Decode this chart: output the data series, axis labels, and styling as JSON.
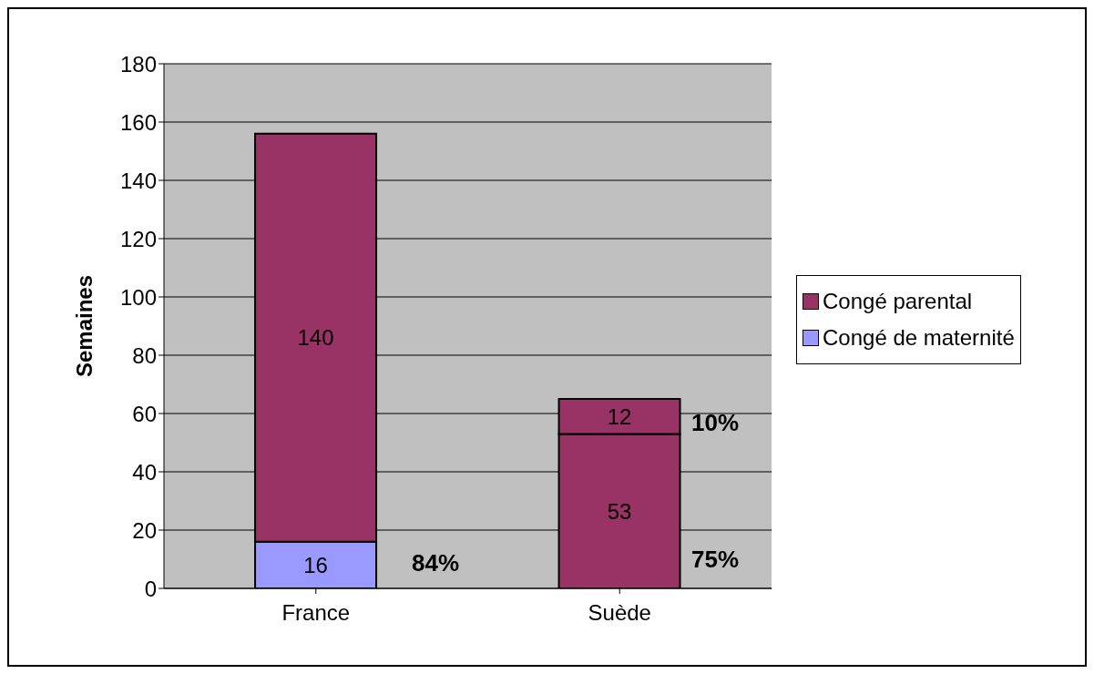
{
  "chart_data": {
    "type": "bar",
    "stacked": true,
    "ylabel": "Semaines",
    "categories": [
      "France",
      "Suède"
    ],
    "series": [
      {
        "name": "Congé de maternité",
        "color": "#9999ff",
        "values": [
          16,
          null
        ]
      },
      {
        "name": "Congé parental",
        "color": "#993366",
        "values": [
          140,
          53
        ]
      },
      {
        "color": "#993366",
        "values": [
          null,
          12
        ]
      }
    ],
    "ylim": [
      0,
      180
    ],
    "yticks": [
      0,
      20,
      40,
      60,
      80,
      100,
      120,
      140,
      160,
      180
    ],
    "grid": "y",
    "legend": "right",
    "data_labels": true,
    "annotations": [
      "84%",
      "10%",
      "75%"
    ]
  }
}
